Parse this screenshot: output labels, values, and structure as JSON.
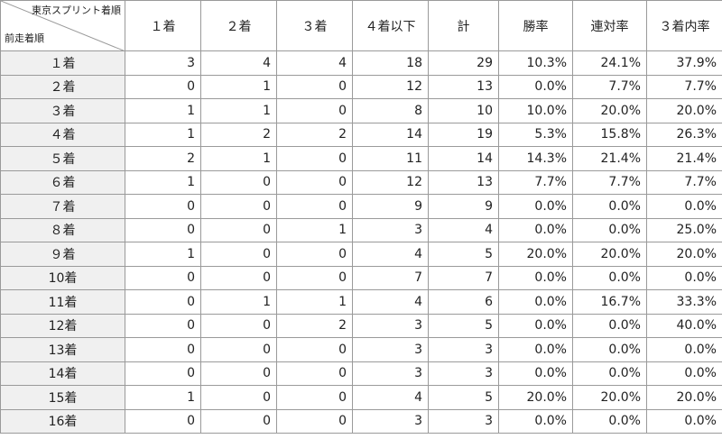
{
  "table": {
    "corner_top": "東京スプリント着順",
    "corner_bottom": "前走着順",
    "columns": [
      "１着",
      "２着",
      "３着",
      "４着以下",
      "計",
      "勝率",
      "連対率",
      "３着内率"
    ],
    "rows": [
      [
        "１着",
        "3",
        "4",
        "4",
        "18",
        "29",
        "10.3%",
        "24.1%",
        "37.9%"
      ],
      [
        "２着",
        "0",
        "1",
        "0",
        "12",
        "13",
        "0.0%",
        "7.7%",
        "7.7%"
      ],
      [
        "３着",
        "1",
        "1",
        "0",
        "8",
        "10",
        "10.0%",
        "20.0%",
        "20.0%"
      ],
      [
        "４着",
        "1",
        "2",
        "2",
        "14",
        "19",
        "5.3%",
        "15.8%",
        "26.3%"
      ],
      [
        "５着",
        "2",
        "1",
        "0",
        "11",
        "14",
        "14.3%",
        "21.4%",
        "21.4%"
      ],
      [
        "６着",
        "1",
        "0",
        "0",
        "12",
        "13",
        "7.7%",
        "7.7%",
        "7.7%"
      ],
      [
        "７着",
        "0",
        "0",
        "0",
        "9",
        "9",
        "0.0%",
        "0.0%",
        "0.0%"
      ],
      [
        "８着",
        "0",
        "0",
        "1",
        "3",
        "4",
        "0.0%",
        "0.0%",
        "25.0%"
      ],
      [
        "９着",
        "1",
        "0",
        "0",
        "4",
        "5",
        "20.0%",
        "20.0%",
        "20.0%"
      ],
      [
        "10着",
        "0",
        "0",
        "0",
        "7",
        "7",
        "0.0%",
        "0.0%",
        "0.0%"
      ],
      [
        "11着",
        "0",
        "1",
        "1",
        "4",
        "6",
        "0.0%",
        "16.7%",
        "33.3%"
      ],
      [
        "12着",
        "0",
        "0",
        "2",
        "3",
        "5",
        "0.0%",
        "0.0%",
        "40.0%"
      ],
      [
        "13着",
        "0",
        "0",
        "0",
        "3",
        "3",
        "0.0%",
        "0.0%",
        "0.0%"
      ],
      [
        "14着",
        "0",
        "0",
        "0",
        "3",
        "3",
        "0.0%",
        "0.0%",
        "0.0%"
      ],
      [
        "15着",
        "1",
        "0",
        "0",
        "4",
        "5",
        "20.0%",
        "20.0%",
        "20.0%"
      ],
      [
        "16着",
        "0",
        "0",
        "0",
        "3",
        "3",
        "0.0%",
        "0.0%",
        "0.0%"
      ]
    ]
  }
}
